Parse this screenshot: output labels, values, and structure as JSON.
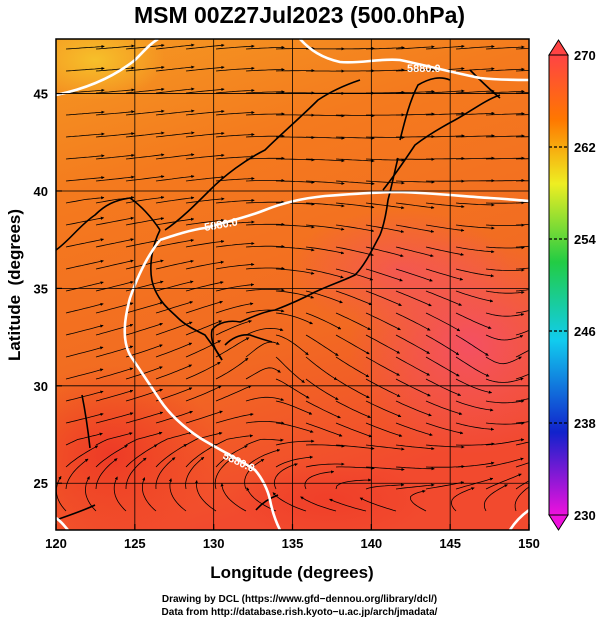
{
  "title": "MSM 00Z27Jul2023 (500.0hPa)",
  "x_axis": {
    "label": "Longitude (degrees)",
    "min": 120,
    "max": 150,
    "ticks": [
      "120",
      "125",
      "130",
      "135",
      "140",
      "145",
      "150"
    ]
  },
  "y_axis": {
    "label": "Latitude  (degrees)",
    "min": 22.6,
    "max": 47.8,
    "ticks": [
      "25",
      "30",
      "35",
      "40",
      "45"
    ]
  },
  "colorbar": {
    "min": 230,
    "max": 270,
    "ticks": [
      "230",
      "238",
      "246",
      "254",
      "262",
      "270"
    ],
    "stops": [
      "#ee11dd",
      "#1122cc",
      "#11ccee",
      "#22cc44",
      "#eeee22",
      "#ff7700",
      "#ff4444"
    ]
  },
  "contours": [
    {
      "label": "5880.0"
    },
    {
      "label": "5880.0"
    },
    {
      "label": "5880.0"
    }
  ],
  "field_colors": {
    "warm_orange": "#f47a1e",
    "hot_red": "#f24a2e",
    "yellow": "#f5b224",
    "pink": "#f35a5a"
  },
  "credits": {
    "line1": "Drawing by DCL (https://www.gfd−dennou.org/library/dcl/)",
    "line2": "Data from http://database.rish.kyoto−u.ac.jp/arch/jmadata/"
  }
}
